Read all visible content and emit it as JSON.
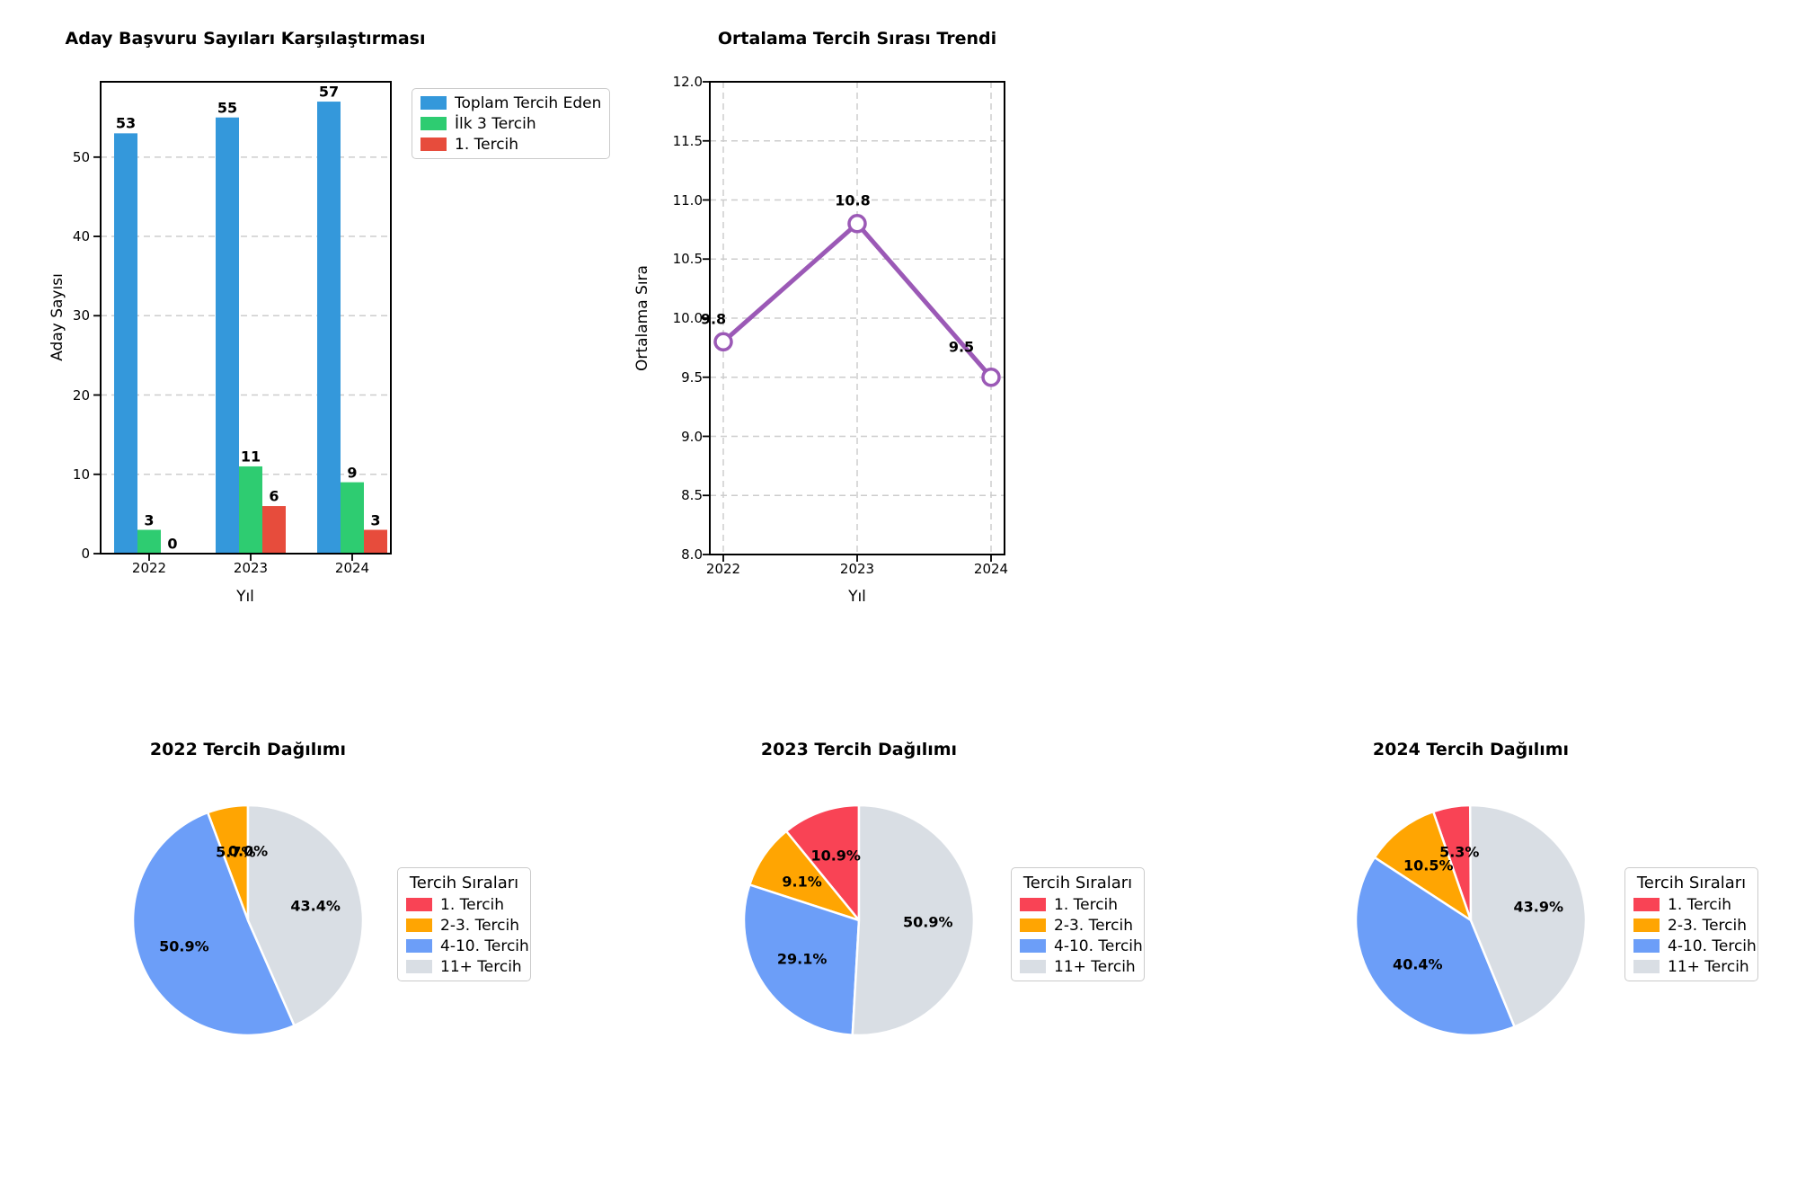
{
  "chart_data": [
    {
      "id": "applications-bar",
      "type": "bar",
      "title": "Aday Başvuru Sayıları Karşılaştırması",
      "xlabel": "Yıl",
      "ylabel": "Aday Sayısı",
      "categories": [
        "2022",
        "2023",
        "2024"
      ],
      "series": [
        {
          "name": "Toplam Tercih Eden",
          "color": "#3498DB",
          "values": [
            53,
            55,
            57
          ]
        },
        {
          "name": "İlk 3 Tercih",
          "color": "#2ECC71",
          "values": [
            3,
            11,
            9
          ]
        },
        {
          "name": "1. Tercih",
          "color": "#E74C3C",
          "values": [
            0,
            6,
            3
          ]
        }
      ],
      "ylim": [
        0,
        59.5
      ],
      "yticks": [
        "0",
        "10",
        "20",
        "30",
        "40",
        "50"
      ],
      "grid": true,
      "legend_position": "outside-upper-right"
    },
    {
      "id": "average-rank-line",
      "type": "line",
      "title": "Ortalama Tercih Sırası Trendi",
      "xlabel": "Yıl",
      "ylabel": "Ortalama Sıra",
      "x": [
        "2022",
        "2023",
        "2024"
      ],
      "values": [
        9.8,
        10.8,
        9.5
      ],
      "point_labels": [
        "9.8",
        "10.8",
        "9.5"
      ],
      "color": "#9B59B6",
      "marker": "open-circle",
      "ylim": [
        8.0,
        12.0
      ],
      "yticks": [
        "8.0",
        "8.5",
        "9.0",
        "9.5",
        "10.0",
        "10.5",
        "11.0",
        "11.5",
        "12.0"
      ],
      "grid": true
    },
    {
      "id": "pie-2022",
      "type": "pie",
      "title": "2022 Tercih Dağılımı",
      "legend_title": "Tercih Sıraları",
      "categories": [
        "1. Tercih",
        "2-3. Tercih",
        "4-10. Tercih",
        "11+ Tercih"
      ],
      "colors": [
        "#F94355",
        "#FFA502",
        "#6C9EF8",
        "#D9DEE4"
      ],
      "values": [
        0.0,
        5.7,
        50.9,
        43.4
      ],
      "labels": [
        "0.0%",
        "5.7%",
        "50.9%",
        "43.4%"
      ],
      "start_angle": 90,
      "counterclock": true
    },
    {
      "id": "pie-2023",
      "type": "pie",
      "title": "2023 Tercih Dağılımı",
      "legend_title": "Tercih Sıraları",
      "categories": [
        "1. Tercih",
        "2-3. Tercih",
        "4-10. Tercih",
        "11+ Tercih"
      ],
      "colors": [
        "#F94355",
        "#FFA502",
        "#6C9EF8",
        "#D9DEE4"
      ],
      "values": [
        10.9,
        9.1,
        29.1,
        50.9
      ],
      "labels": [
        "10.9%",
        "9.1%",
        "29.1%",
        "50.9%"
      ],
      "start_angle": 90,
      "counterclock": true
    },
    {
      "id": "pie-2024",
      "type": "pie",
      "title": "2024 Tercih Dağılımı",
      "legend_title": "Tercih Sıraları",
      "categories": [
        "1. Tercih",
        "2-3. Tercih",
        "4-10. Tercih",
        "11+ Tercih"
      ],
      "colors": [
        "#F94355",
        "#FFA502",
        "#6C9EF8",
        "#D9DEE4"
      ],
      "values": [
        5.3,
        10.5,
        40.4,
        43.9
      ],
      "labels": [
        "5.3%",
        "10.5%",
        "40.4%",
        "43.9%"
      ],
      "start_angle": 90,
      "counterclock": true
    }
  ]
}
